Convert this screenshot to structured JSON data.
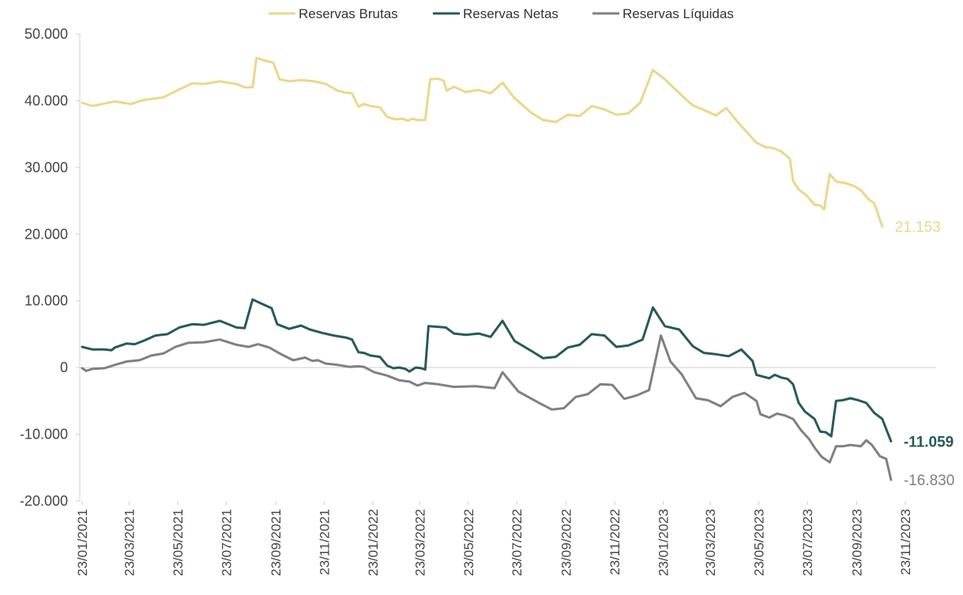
{
  "chart_data": {
    "type": "line",
    "title": "",
    "xlabel": "",
    "ylabel": "",
    "ylim": [
      -20000,
      50000
    ],
    "y_ticks": [
      50000,
      40000,
      30000,
      20000,
      10000,
      0,
      -10000,
      -20000
    ],
    "y_tick_labels": [
      "50.000",
      "40.000",
      "30.000",
      "20.000",
      "10.000",
      "0",
      "-10.000",
      "-20.000"
    ],
    "x_range": [
      "2021-01-23",
      "2023-11-23"
    ],
    "x_ticks": [
      "2021-01-23",
      "2021-03-23",
      "2021-05-23",
      "2021-07-23",
      "2021-09-23",
      "2021-11-23",
      "2022-01-23",
      "2022-03-23",
      "2022-05-23",
      "2022-07-23",
      "2022-09-23",
      "2022-11-23",
      "2023-01-23",
      "2023-03-23",
      "2023-05-23",
      "2023-07-23",
      "2023-09-23",
      "2023-11-23"
    ],
    "x_tick_labels": [
      "23/01/2021",
      "23/03/2021",
      "23/05/2021",
      "23/07/2021",
      "23/09/2021",
      "23/11/2021",
      "23/01/2022",
      "23/03/2022",
      "23/05/2022",
      "23/07/2022",
      "23/09/2022",
      "23/11/2022",
      "23/01/2023",
      "23/03/2023",
      "23/05/2023",
      "23/07/2023",
      "23/09/2023",
      "23/11/2023"
    ],
    "grid": false,
    "legend_position": "top",
    "series": [
      {
        "name": "Reservas Brutas",
        "color": "#EDD68A",
        "end_label": "21.153",
        "points": [
          [
            "2021-01-23",
            39700
          ],
          [
            "2021-02-05",
            39200
          ],
          [
            "2021-02-25",
            39700
          ],
          [
            "2021-03-05",
            39900
          ],
          [
            "2021-03-25",
            39500
          ],
          [
            "2021-04-10",
            40100
          ],
          [
            "2021-05-05",
            40500
          ],
          [
            "2021-05-25",
            41700
          ],
          [
            "2021-06-10",
            42600
          ],
          [
            "2021-06-25",
            42500
          ],
          [
            "2021-07-15",
            42900
          ],
          [
            "2021-08-05",
            42500
          ],
          [
            "2021-08-15",
            42000
          ],
          [
            "2021-08-25",
            42000
          ],
          [
            "2021-08-30",
            46400
          ],
          [
            "2021-09-10",
            46000
          ],
          [
            "2021-09-20",
            45700
          ],
          [
            "2021-09-28",
            43200
          ],
          [
            "2021-10-10",
            42900
          ],
          [
            "2021-10-25",
            43100
          ],
          [
            "2021-11-10",
            42900
          ],
          [
            "2021-11-25",
            42500
          ],
          [
            "2021-12-10",
            41500
          ],
          [
            "2021-12-20",
            41200
          ],
          [
            "2021-12-28",
            41100
          ],
          [
            "2022-01-05",
            39100
          ],
          [
            "2022-01-12",
            39500
          ],
          [
            "2022-01-20",
            39200
          ],
          [
            "2022-02-01",
            39000
          ],
          [
            "2022-02-10",
            37600
          ],
          [
            "2022-02-20",
            37200
          ],
          [
            "2022-03-01",
            37300
          ],
          [
            "2022-03-08",
            37000
          ],
          [
            "2022-03-14",
            37300
          ],
          [
            "2022-03-20",
            37100
          ],
          [
            "2022-03-30",
            37100
          ],
          [
            "2022-04-05",
            43200
          ],
          [
            "2022-04-15",
            43300
          ],
          [
            "2022-04-22",
            43000
          ],
          [
            "2022-04-26",
            41500
          ],
          [
            "2022-05-05",
            42100
          ],
          [
            "2022-05-20",
            41300
          ],
          [
            "2022-06-05",
            41600
          ],
          [
            "2022-06-20",
            41100
          ],
          [
            "2022-07-05",
            42700
          ],
          [
            "2022-07-20",
            40400
          ],
          [
            "2022-08-10",
            38200
          ],
          [
            "2022-08-25",
            37100
          ],
          [
            "2022-09-10",
            36800
          ],
          [
            "2022-09-25",
            37900
          ],
          [
            "2022-10-10",
            37700
          ],
          [
            "2022-10-25",
            39200
          ],
          [
            "2022-11-10",
            38700
          ],
          [
            "2022-11-25",
            37900
          ],
          [
            "2022-12-10",
            38100
          ],
          [
            "2022-12-25",
            39700
          ],
          [
            "2023-01-10",
            44600
          ],
          [
            "2023-01-25",
            43200
          ],
          [
            "2023-02-15",
            40800
          ],
          [
            "2023-03-01",
            39300
          ],
          [
            "2023-03-15",
            38600
          ],
          [
            "2023-03-30",
            37800
          ],
          [
            "2023-04-12",
            38900
          ],
          [
            "2023-04-25",
            37000
          ],
          [
            "2023-05-10",
            35000
          ],
          [
            "2023-05-20",
            33700
          ],
          [
            "2023-06-01",
            33000
          ],
          [
            "2023-06-10",
            32900
          ],
          [
            "2023-06-20",
            32400
          ],
          [
            "2023-07-01",
            31300
          ],
          [
            "2023-07-05",
            28000
          ],
          [
            "2023-07-12",
            26700
          ],
          [
            "2023-07-22",
            25800
          ],
          [
            "2023-08-01",
            24400
          ],
          [
            "2023-08-08",
            24300
          ],
          [
            "2023-08-13",
            23700
          ],
          [
            "2023-08-20",
            29000
          ],
          [
            "2023-08-28",
            27900
          ],
          [
            "2023-09-10",
            27600
          ],
          [
            "2023-09-20",
            27200
          ],
          [
            "2023-09-28",
            26600
          ],
          [
            "2023-10-08",
            25200
          ],
          [
            "2023-10-15",
            24600
          ],
          [
            "2023-10-25",
            21153
          ]
        ]
      },
      {
        "name": "Reservas Netas",
        "color": "#275A5A",
        "end_label": "-11.059",
        "points": [
          [
            "2021-01-23",
            3100
          ],
          [
            "2021-02-05",
            2700
          ],
          [
            "2021-02-20",
            2700
          ],
          [
            "2021-03-01",
            2600
          ],
          [
            "2021-03-05",
            3000
          ],
          [
            "2021-03-20",
            3600
          ],
          [
            "2021-03-30",
            3500
          ],
          [
            "2021-04-10",
            4000
          ],
          [
            "2021-04-25",
            4800
          ],
          [
            "2021-05-10",
            5000
          ],
          [
            "2021-05-25",
            6000
          ],
          [
            "2021-06-10",
            6500
          ],
          [
            "2021-06-25",
            6400
          ],
          [
            "2021-07-15",
            7000
          ],
          [
            "2021-08-05",
            6000
          ],
          [
            "2021-08-15",
            5900
          ],
          [
            "2021-08-25",
            10200
          ],
          [
            "2021-09-05",
            9600
          ],
          [
            "2021-09-18",
            8900
          ],
          [
            "2021-09-25",
            6500
          ],
          [
            "2021-10-10",
            5800
          ],
          [
            "2021-10-25",
            6300
          ],
          [
            "2021-11-05",
            5700
          ],
          [
            "2021-11-20",
            5200
          ],
          [
            "2021-12-05",
            4800
          ],
          [
            "2021-12-20",
            4500
          ],
          [
            "2021-12-28",
            4200
          ],
          [
            "2022-01-05",
            2300
          ],
          [
            "2022-01-12",
            2200
          ],
          [
            "2022-01-20",
            1800
          ],
          [
            "2022-02-01",
            1600
          ],
          [
            "2022-02-10",
            300
          ],
          [
            "2022-02-18",
            -100
          ],
          [
            "2022-02-25",
            0
          ],
          [
            "2022-03-05",
            -200
          ],
          [
            "2022-03-10",
            -600
          ],
          [
            "2022-03-18",
            0
          ],
          [
            "2022-03-25",
            -100
          ],
          [
            "2022-03-30",
            -300
          ],
          [
            "2022-04-03",
            6200
          ],
          [
            "2022-04-15",
            6100
          ],
          [
            "2022-04-25",
            6000
          ],
          [
            "2022-05-05",
            5100
          ],
          [
            "2022-05-20",
            4900
          ],
          [
            "2022-06-05",
            5100
          ],
          [
            "2022-06-20",
            4600
          ],
          [
            "2022-07-05",
            7000
          ],
          [
            "2022-07-20",
            4000
          ],
          [
            "2022-08-10",
            2500
          ],
          [
            "2022-08-25",
            1400
          ],
          [
            "2022-09-10",
            1600
          ],
          [
            "2022-09-25",
            3000
          ],
          [
            "2022-10-10",
            3400
          ],
          [
            "2022-10-25",
            5000
          ],
          [
            "2022-11-10",
            4800
          ],
          [
            "2022-11-25",
            3100
          ],
          [
            "2022-12-10",
            3300
          ],
          [
            "2022-12-28",
            4200
          ],
          [
            "2023-01-10",
            9000
          ],
          [
            "2023-01-25",
            6200
          ],
          [
            "2023-02-12",
            5700
          ],
          [
            "2023-03-01",
            3200
          ],
          [
            "2023-03-15",
            2200
          ],
          [
            "2023-03-30",
            2000
          ],
          [
            "2023-04-15",
            1700
          ],
          [
            "2023-05-01",
            2700
          ],
          [
            "2023-05-15",
            1000
          ],
          [
            "2023-05-20",
            -1100
          ],
          [
            "2023-06-05",
            -1600
          ],
          [
            "2023-06-12",
            -1100
          ],
          [
            "2023-06-20",
            -1500
          ],
          [
            "2023-06-28",
            -1700
          ],
          [
            "2023-07-05",
            -2500
          ],
          [
            "2023-07-12",
            -5300
          ],
          [
            "2023-07-20",
            -6600
          ],
          [
            "2023-08-01",
            -7700
          ],
          [
            "2023-08-08",
            -9600
          ],
          [
            "2023-08-15",
            -9700
          ],
          [
            "2023-08-22",
            -10300
          ],
          [
            "2023-08-28",
            -5000
          ],
          [
            "2023-09-05",
            -4900
          ],
          [
            "2023-09-15",
            -4600
          ],
          [
            "2023-09-25",
            -4900
          ],
          [
            "2023-10-05",
            -5300
          ],
          [
            "2023-10-15",
            -6800
          ],
          [
            "2023-10-25",
            -7700
          ],
          [
            "2023-11-05",
            -11059
          ]
        ]
      },
      {
        "name": "Reservas Líquidas",
        "color": "#808080",
        "end_label": "-16.830",
        "points": [
          [
            "2021-01-23",
            -100
          ],
          [
            "2021-01-28",
            -500
          ],
          [
            "2021-02-05",
            -200
          ],
          [
            "2021-02-20",
            -100
          ],
          [
            "2021-03-05",
            400
          ],
          [
            "2021-03-20",
            900
          ],
          [
            "2021-04-05",
            1100
          ],
          [
            "2021-04-20",
            1800
          ],
          [
            "2021-05-05",
            2100
          ],
          [
            "2021-05-20",
            3100
          ],
          [
            "2021-06-05",
            3700
          ],
          [
            "2021-06-25",
            3800
          ],
          [
            "2021-07-15",
            4200
          ],
          [
            "2021-08-05",
            3400
          ],
          [
            "2021-08-20",
            3100
          ],
          [
            "2021-09-01",
            3500
          ],
          [
            "2021-09-15",
            3000
          ],
          [
            "2021-09-30",
            2000
          ],
          [
            "2021-10-15",
            1100
          ],
          [
            "2021-10-30",
            1500
          ],
          [
            "2021-11-08",
            1000
          ],
          [
            "2021-11-15",
            1100
          ],
          [
            "2021-11-25",
            600
          ],
          [
            "2021-12-10",
            400
          ],
          [
            "2021-12-25",
            100
          ],
          [
            "2022-01-05",
            200
          ],
          [
            "2022-01-12",
            100
          ],
          [
            "2022-01-25",
            -700
          ],
          [
            "2022-02-10",
            -1200
          ],
          [
            "2022-02-25",
            -1900
          ],
          [
            "2022-03-10",
            -2100
          ],
          [
            "2022-03-20",
            -2700
          ],
          [
            "2022-03-30",
            -2300
          ],
          [
            "2022-04-15",
            -2500
          ],
          [
            "2022-05-05",
            -2900
          ],
          [
            "2022-06-01",
            -2800
          ],
          [
            "2022-06-25",
            -3100
          ],
          [
            "2022-07-05",
            -700
          ],
          [
            "2022-07-25",
            -3600
          ],
          [
            "2022-08-20",
            -5300
          ],
          [
            "2022-09-05",
            -6300
          ],
          [
            "2022-09-20",
            -6100
          ],
          [
            "2022-10-05",
            -4400
          ],
          [
            "2022-10-20",
            -4000
          ],
          [
            "2022-11-05",
            -2500
          ],
          [
            "2022-11-20",
            -2600
          ],
          [
            "2022-12-05",
            -4700
          ],
          [
            "2022-12-20",
            -4200
          ],
          [
            "2023-01-05",
            -3400
          ],
          [
            "2023-01-20",
            4800
          ],
          [
            "2023-02-01",
            900
          ],
          [
            "2023-02-15",
            -1000
          ],
          [
            "2023-03-05",
            -4600
          ],
          [
            "2023-03-20",
            -4900
          ],
          [
            "2023-04-05",
            -5800
          ],
          [
            "2023-04-20",
            -4400
          ],
          [
            "2023-05-05",
            -3800
          ],
          [
            "2023-05-20",
            -5000
          ],
          [
            "2023-05-25",
            -7000
          ],
          [
            "2023-06-05",
            -7500
          ],
          [
            "2023-06-15",
            -6900
          ],
          [
            "2023-06-25",
            -7200
          ],
          [
            "2023-07-05",
            -7700
          ],
          [
            "2023-07-15",
            -9400
          ],
          [
            "2023-07-25",
            -10700
          ],
          [
            "2023-08-01",
            -12000
          ],
          [
            "2023-08-10",
            -13400
          ],
          [
            "2023-08-20",
            -14200
          ],
          [
            "2023-08-28",
            -11800
          ],
          [
            "2023-09-05",
            -11800
          ],
          [
            "2023-09-15",
            -11600
          ],
          [
            "2023-09-28",
            -11800
          ],
          [
            "2023-10-05",
            -10900
          ],
          [
            "2023-10-12",
            -11600
          ],
          [
            "2023-10-22",
            -13300
          ],
          [
            "2023-10-30",
            -13700
          ],
          [
            "2023-11-05",
            -16830
          ]
        ]
      }
    ]
  }
}
